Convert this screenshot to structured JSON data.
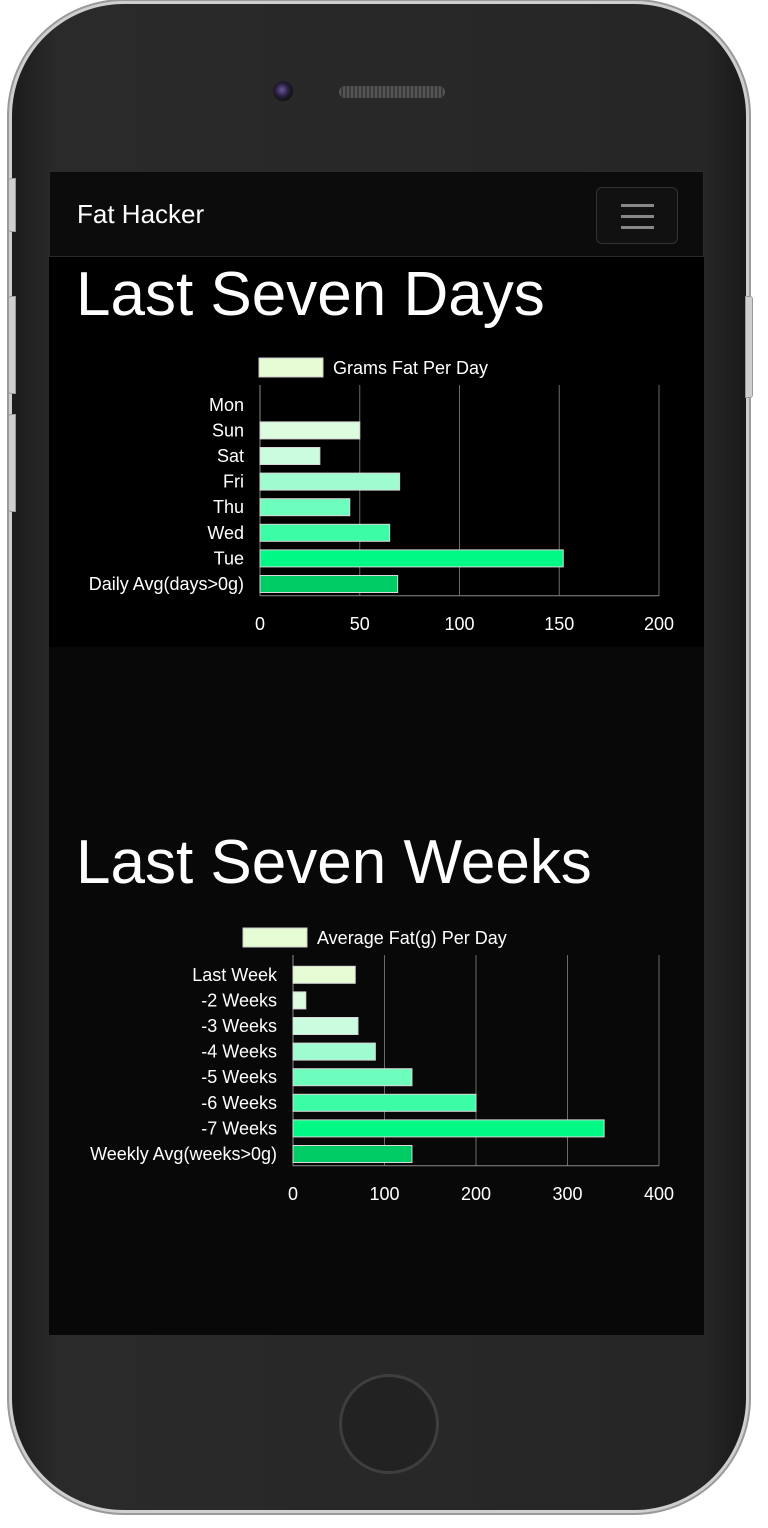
{
  "navbar": {
    "brand": "Fat Hacker",
    "menu_icon": "hamburger-icon"
  },
  "sections": [
    {
      "title": "Last Seven Days"
    },
    {
      "title": "Last Seven Weeks"
    }
  ],
  "chart_data": [
    {
      "type": "bar",
      "orientation": "horizontal",
      "categories": [
        "Mon",
        "Sun",
        "Sat",
        "Fri",
        "Thu",
        "Wed",
        "Tue",
        "Daily Avg(days>0g)"
      ],
      "series": [
        {
          "name": "Grams Fat Per Day",
          "values": [
            0,
            50,
            30,
            70,
            45,
            65,
            152,
            69
          ]
        }
      ],
      "colors": [
        "#e6fcd4",
        "#ddfbdf",
        "#cbfce0",
        "#9ffcd0",
        "#6dfdbc",
        "#3dfca6",
        "#00f885",
        "#00cc66"
      ],
      "xlim": [
        0,
        200
      ],
      "xticks": [
        0,
        50,
        100,
        150,
        200
      ],
      "grid": true,
      "legend": "top"
    },
    {
      "type": "bar",
      "orientation": "horizontal",
      "categories": [
        "Last Week",
        "-2 Weeks",
        "-3 Weeks",
        "-4 Weeks",
        "-5 Weeks",
        "-6 Weeks",
        "-7 Weeks",
        "Weekly Avg(weeks>0g)"
      ],
      "series": [
        {
          "name": "Average Fat(g) Per Day",
          "values": [
            68,
            14,
            71,
            90,
            130,
            200,
            340,
            130
          ]
        }
      ],
      "colors": [
        "#e6fcd4",
        "#ddfbdf",
        "#cbfce0",
        "#9ffcd0",
        "#6dfdbc",
        "#3dfca6",
        "#00f885",
        "#00cc66"
      ],
      "xlim": [
        0,
        400
      ],
      "xticks": [
        0,
        100,
        200,
        300,
        400
      ],
      "grid": true,
      "legend": "top"
    }
  ]
}
